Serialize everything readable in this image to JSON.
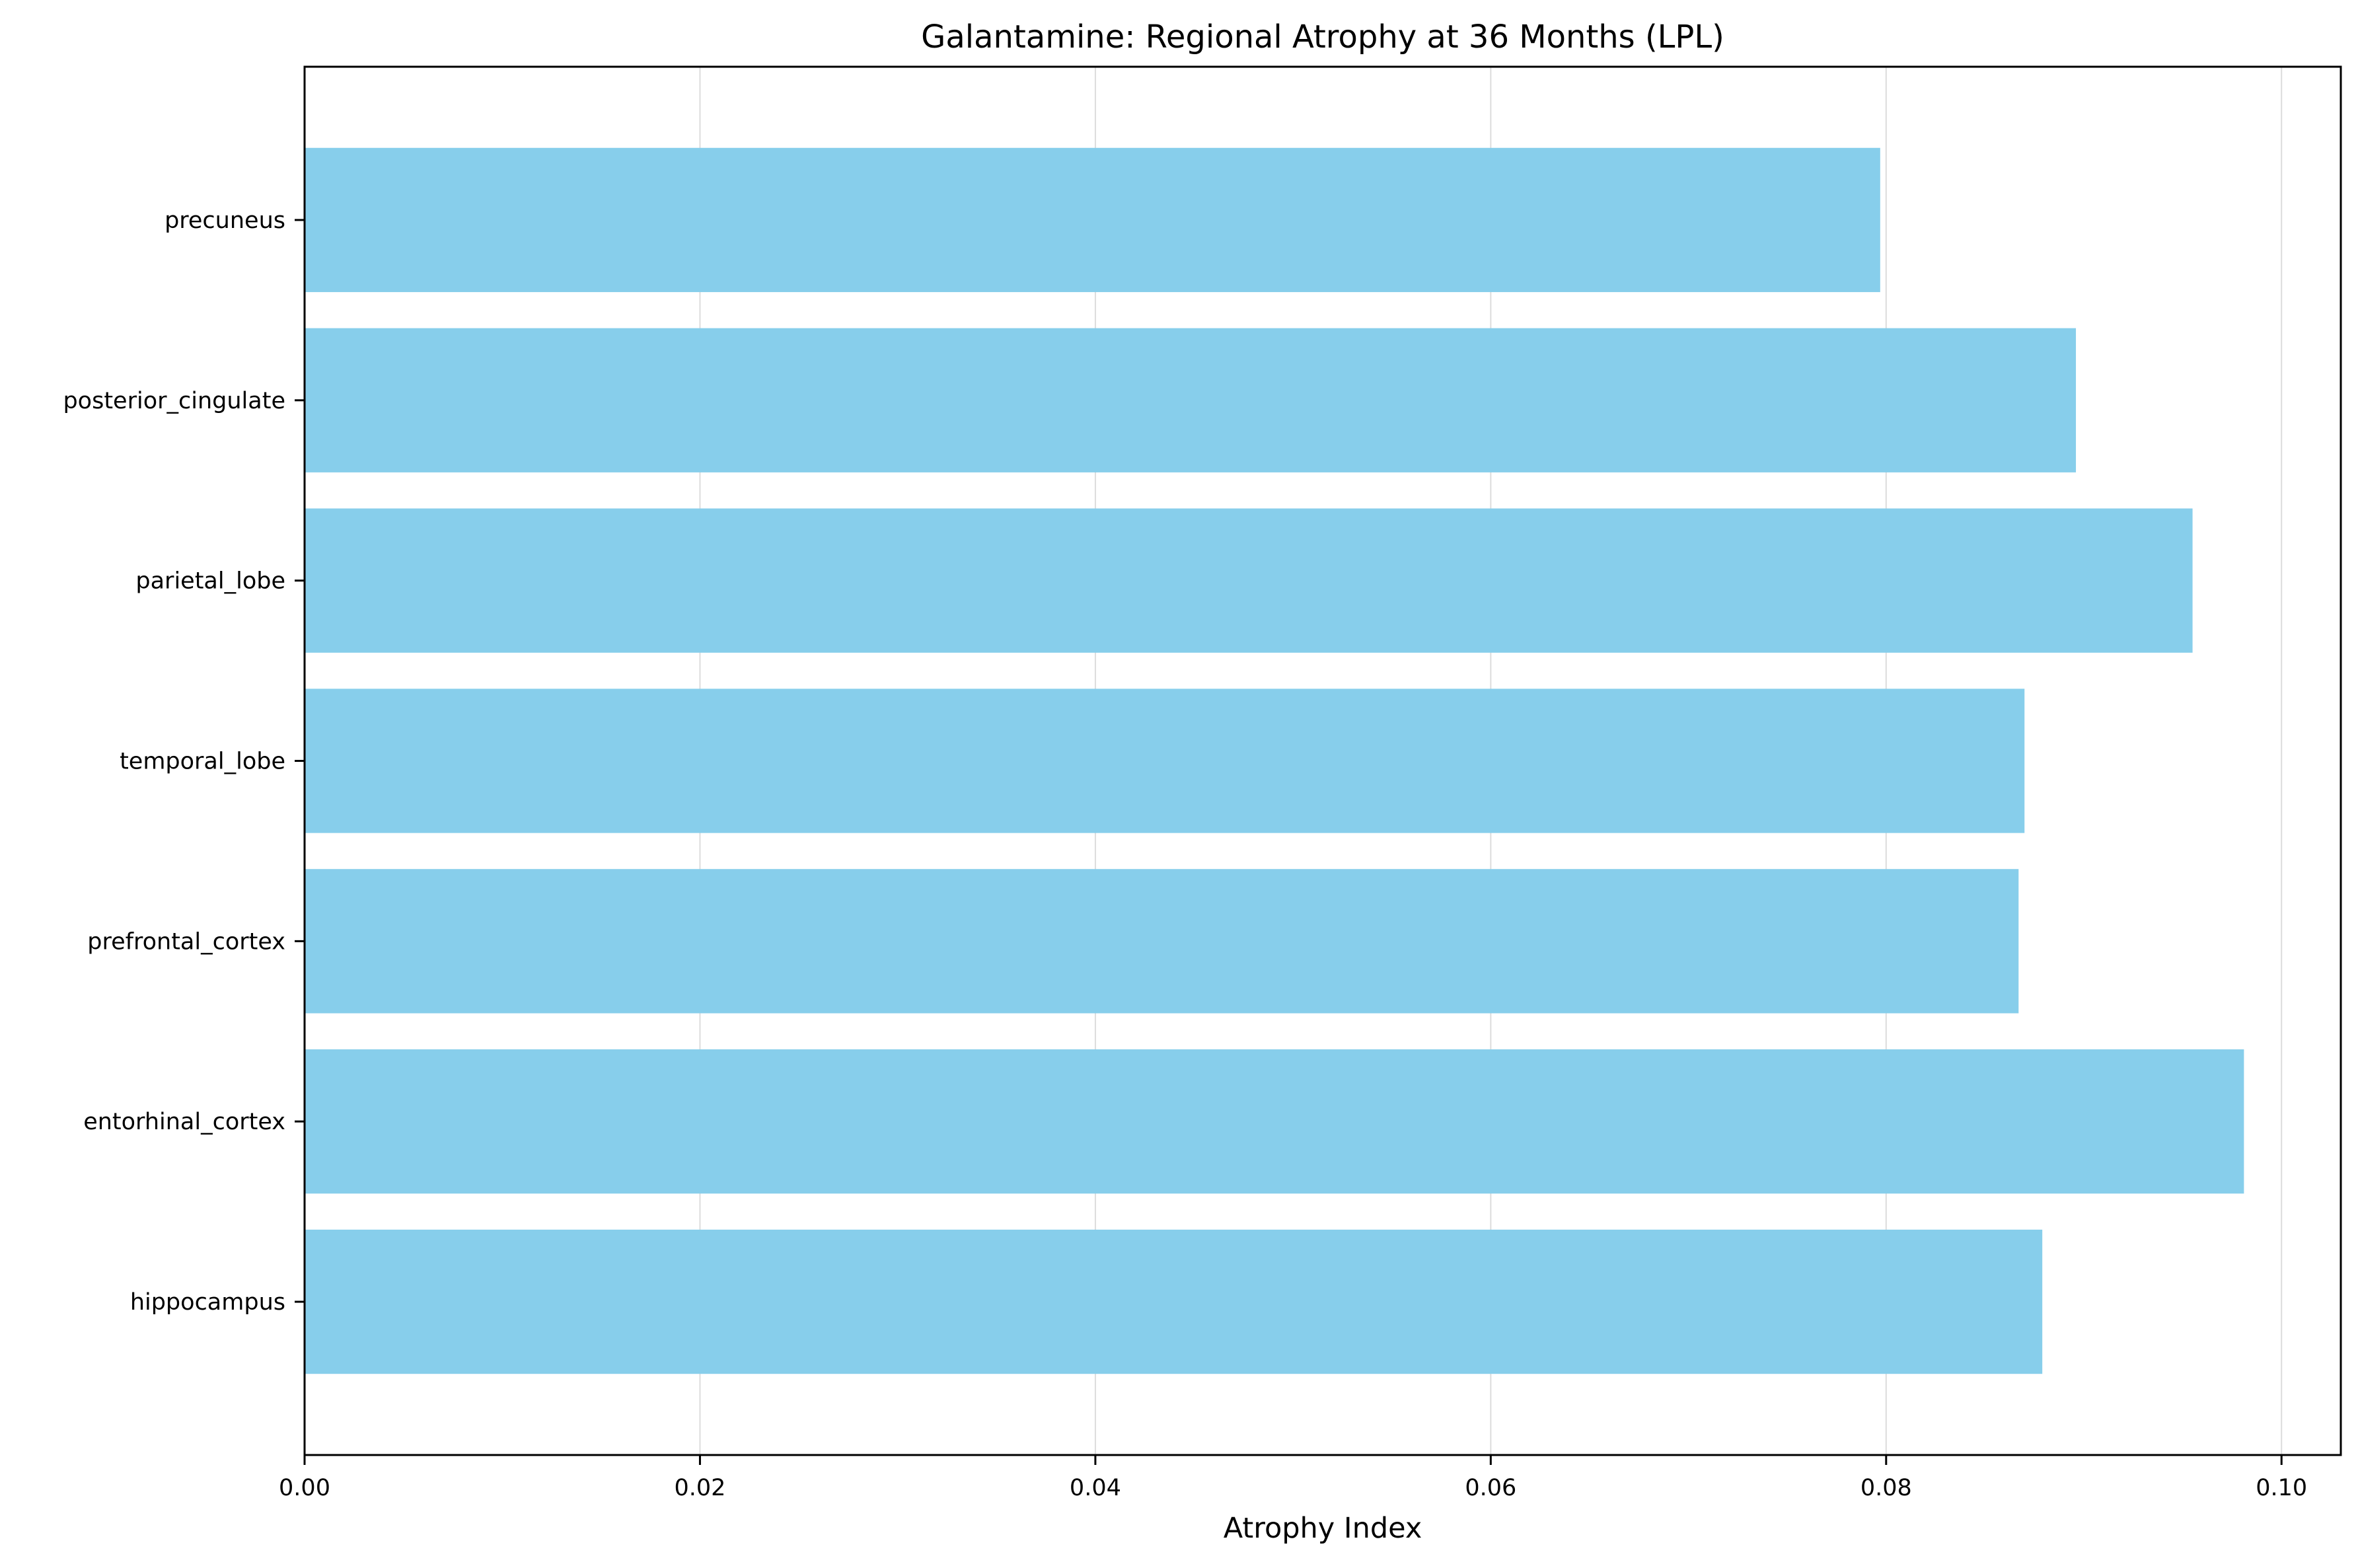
{
  "chart_data": {
    "type": "bar",
    "orientation": "horizontal",
    "title": "Galantamine: Regional Atrophy at 36 Months (LPL)",
    "xlabel": "Atrophy Index",
    "ylabel": "",
    "categories": [
      "hippocampus",
      "entorhinal_cortex",
      "prefrontal_cortex",
      "temporal_lobe",
      "parietal_lobe",
      "posterior_cingulate",
      "precuneus"
    ],
    "values": [
      0.0879,
      0.0981,
      0.0867,
      0.087,
      0.0955,
      0.0896,
      0.0797
    ],
    "xlim": [
      0.0,
      0.103
    ],
    "xticks": [
      "0.00",
      "0.02",
      "0.04",
      "0.06",
      "0.08",
      "0.10"
    ],
    "grid": "x-axis vertical lines",
    "legend": "none",
    "bar_color": "#87CEEB"
  }
}
